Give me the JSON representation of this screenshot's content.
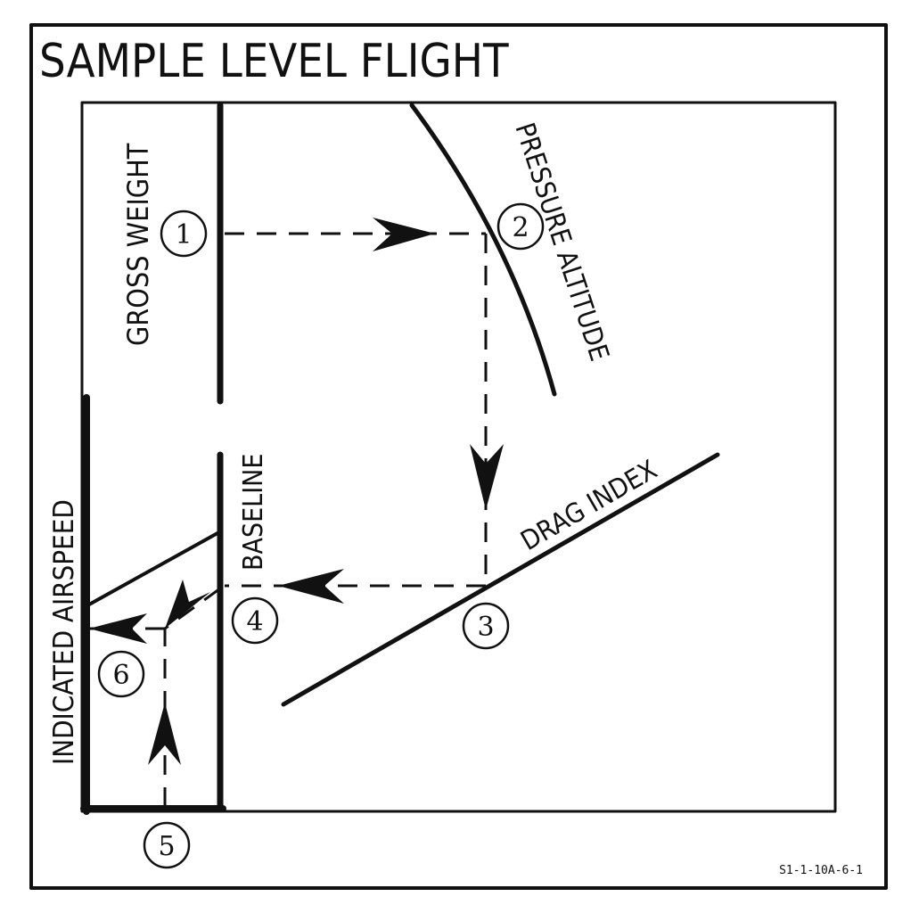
{
  "title": "SAMPLE LEVEL FLIGHT",
  "labels": {
    "gross_weight": "GROSS WEIGHT",
    "pressure_altitude": "PRESSURE ALTITUDE",
    "baseline": "BASELINE",
    "drag_index": "DRAG INDEX",
    "indicated_airspeed": "INDICATED AIRSPEED"
  },
  "steps": [
    "1",
    "2",
    "3",
    "4",
    "5",
    "6"
  ],
  "figure_id": "S1-1-10A-6-1",
  "colors": {
    "ink": "#111111",
    "paper": "#ffffff"
  }
}
